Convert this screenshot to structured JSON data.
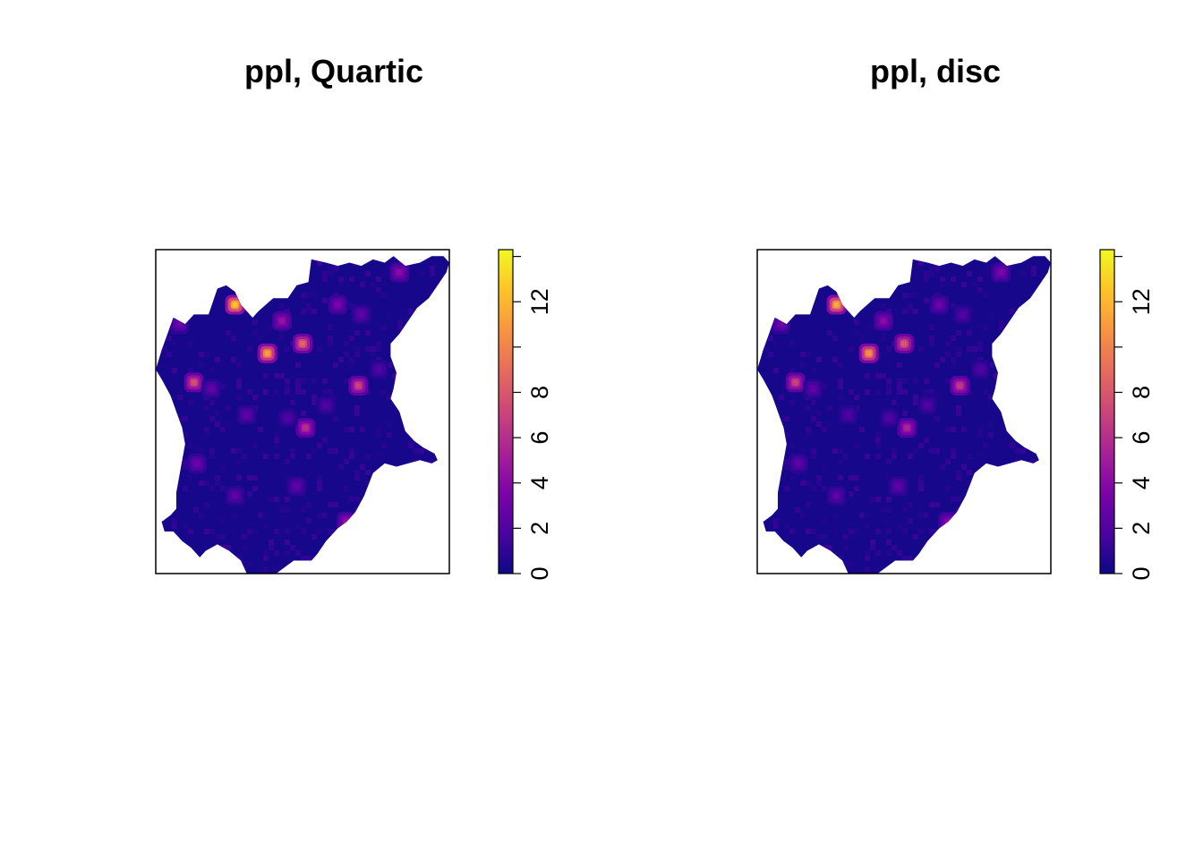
{
  "chart_data": [
    {
      "type": "heatmap",
      "title": "ppl, Quartic",
      "xlabel": "",
      "ylabel": "",
      "axes": "none",
      "colorbar": {
        "range": [
          0,
          14.3
        ],
        "ticks": [
          0,
          2,
          4,
          6,
          8,
          10,
          12,
          14
        ],
        "tick_labels": [
          "0",
          "2",
          "4",
          "6",
          "8",
          "",
          "12",
          ""
        ],
        "colors": [
          "#0D0887",
          "#4B03A1",
          "#7D03A8",
          "#A82296",
          "#CB4679",
          "#E56B5D",
          "#F89441",
          "#FDC328",
          "#F0F921"
        ]
      },
      "hotspots": [
        {
          "x": 0.27,
          "y": 0.83,
          "value": 12.5
        },
        {
          "x": 0.38,
          "y": 0.68,
          "value": 11.0
        },
        {
          "x": 0.5,
          "y": 0.71,
          "value": 8.5
        },
        {
          "x": 0.69,
          "y": 0.58,
          "value": 7.0
        },
        {
          "x": 0.13,
          "y": 0.59,
          "value": 7.5
        },
        {
          "x": 0.51,
          "y": 0.45,
          "value": 6.0
        },
        {
          "x": 0.43,
          "y": 0.78,
          "value": 4.5
        },
        {
          "x": 0.62,
          "y": 0.83,
          "value": 3.5
        },
        {
          "x": 0.83,
          "y": 0.93,
          "value": 4.0
        },
        {
          "x": 0.65,
          "y": 0.16,
          "value": 4.5
        },
        {
          "x": 0.08,
          "y": 0.77,
          "value": 3.0
        },
        {
          "x": 0.14,
          "y": 0.34,
          "value": 3.0
        },
        {
          "x": 0.27,
          "y": 0.24,
          "value": 2.5
        },
        {
          "x": 0.48,
          "y": 0.27,
          "value": 2.5
        },
        {
          "x": 0.19,
          "y": 0.57,
          "value": 2.5
        },
        {
          "x": 0.31,
          "y": 0.49,
          "value": 2.5
        },
        {
          "x": 0.58,
          "y": 0.52,
          "value": 2.0
        },
        {
          "x": 0.7,
          "y": 0.8,
          "value": 2.5
        },
        {
          "x": 0.76,
          "y": 0.63,
          "value": 2.0
        },
        {
          "x": 0.45,
          "y": 0.48,
          "value": 2.0
        }
      ]
    },
    {
      "type": "heatmap",
      "title": "ppl, disc",
      "xlabel": "",
      "ylabel": "",
      "axes": "none",
      "colorbar": {
        "range": [
          0,
          14.3
        ],
        "ticks": [
          0,
          2,
          4,
          6,
          8,
          10,
          12,
          14
        ],
        "tick_labels": [
          "0",
          "2",
          "4",
          "6",
          "8",
          "",
          "12",
          ""
        ],
        "colors": [
          "#0D0887",
          "#4B03A1",
          "#7D03A8",
          "#A82296",
          "#CB4679",
          "#E56B5D",
          "#F89441",
          "#FDC328",
          "#F0F921"
        ]
      },
      "hotspots": [
        {
          "x": 0.27,
          "y": 0.83,
          "value": 11.5
        },
        {
          "x": 0.38,
          "y": 0.68,
          "value": 10.5
        },
        {
          "x": 0.5,
          "y": 0.71,
          "value": 8.0
        },
        {
          "x": 0.69,
          "y": 0.58,
          "value": 6.5
        },
        {
          "x": 0.13,
          "y": 0.59,
          "value": 7.0
        },
        {
          "x": 0.51,
          "y": 0.45,
          "value": 5.5
        },
        {
          "x": 0.43,
          "y": 0.78,
          "value": 4.0
        },
        {
          "x": 0.62,
          "y": 0.83,
          "value": 3.0
        },
        {
          "x": 0.83,
          "y": 0.93,
          "value": 3.5
        },
        {
          "x": 0.65,
          "y": 0.16,
          "value": 4.0
        },
        {
          "x": 0.08,
          "y": 0.77,
          "value": 3.0
        },
        {
          "x": 0.14,
          "y": 0.34,
          "value": 2.5
        },
        {
          "x": 0.27,
          "y": 0.24,
          "value": 2.5
        },
        {
          "x": 0.48,
          "y": 0.27,
          "value": 2.5
        },
        {
          "x": 0.19,
          "y": 0.57,
          "value": 2.5
        },
        {
          "x": 0.31,
          "y": 0.49,
          "value": 2.0
        },
        {
          "x": 0.58,
          "y": 0.52,
          "value": 2.0
        },
        {
          "x": 0.7,
          "y": 0.8,
          "value": 2.0
        },
        {
          "x": 0.76,
          "y": 0.63,
          "value": 2.0
        },
        {
          "x": 0.45,
          "y": 0.48,
          "value": 2.0
        }
      ]
    }
  ]
}
